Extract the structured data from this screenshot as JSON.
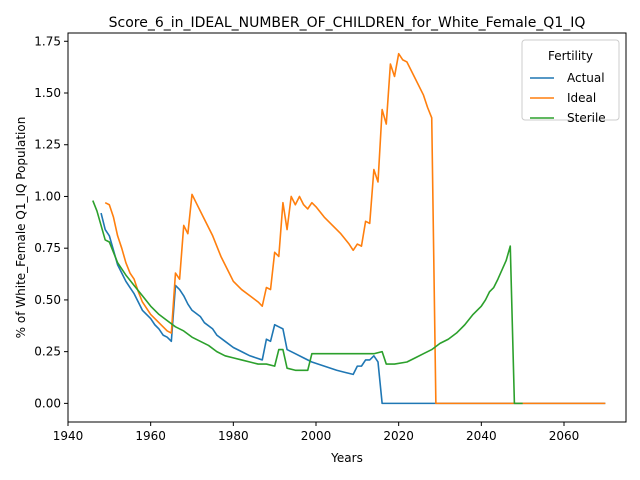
{
  "chart_data": {
    "type": "line",
    "title": "Score_6_in_IDEAL_NUMBER_OF_CHILDREN_for_White_Female_Q1_IQ",
    "xlabel": "Years",
    "ylabel": "% of White_Female Q1_IQ Population",
    "xlim": [
      1940,
      2075
    ],
    "ylim": [
      -0.09,
      1.79
    ],
    "x_ticks": [
      1940,
      1960,
      1980,
      2000,
      2020,
      2040,
      2060
    ],
    "y_ticks": [
      "0.00",
      "0.25",
      "0.50",
      "0.75",
      "1.00",
      "1.25",
      "1.50",
      "1.75"
    ],
    "grid": false,
    "legend": {
      "title": "Fertility",
      "position": "top-right"
    },
    "series": [
      {
        "name": "Actual",
        "color": "#1f77b4",
        "points": [
          [
            1948,
            0.92
          ],
          [
            1949,
            0.84
          ],
          [
            1950,
            0.81
          ],
          [
            1951,
            0.74
          ],
          [
            1952,
            0.67
          ],
          [
            1953,
            0.63
          ],
          [
            1954,
            0.59
          ],
          [
            1955,
            0.56
          ],
          [
            1956,
            0.53
          ],
          [
            1957,
            0.49
          ],
          [
            1958,
            0.45
          ],
          [
            1960,
            0.41
          ],
          [
            1961,
            0.38
          ],
          [
            1962,
            0.36
          ],
          [
            1963,
            0.33
          ],
          [
            1964,
            0.32
          ],
          [
            1965,
            0.3
          ],
          [
            1966,
            0.57
          ],
          [
            1967,
            0.55
          ],
          [
            1968,
            0.52
          ],
          [
            1969,
            0.48
          ],
          [
            1970,
            0.45
          ],
          [
            1972,
            0.42
          ],
          [
            1973,
            0.39
          ],
          [
            1975,
            0.36
          ],
          [
            1976,
            0.33
          ],
          [
            1978,
            0.3
          ],
          [
            1980,
            0.27
          ],
          [
            1982,
            0.25
          ],
          [
            1984,
            0.23
          ],
          [
            1987,
            0.21
          ],
          [
            1988,
            0.31
          ],
          [
            1989,
            0.3
          ],
          [
            1990,
            0.38
          ],
          [
            1991,
            0.37
          ],
          [
            1992,
            0.36
          ],
          [
            1993,
            0.26
          ],
          [
            1995,
            0.24
          ],
          [
            1997,
            0.22
          ],
          [
            1999,
            0.2
          ],
          [
            2002,
            0.18
          ],
          [
            2005,
            0.16
          ],
          [
            2007,
            0.15
          ],
          [
            2009,
            0.14
          ],
          [
            2010,
            0.18
          ],
          [
            2011,
            0.18
          ],
          [
            2012,
            0.21
          ],
          [
            2013,
            0.21
          ],
          [
            2014,
            0.23
          ],
          [
            2015,
            0.2
          ],
          [
            2016,
            0.0
          ],
          [
            2020,
            0.0
          ],
          [
            2030,
            0.0
          ],
          [
            2040,
            0.0
          ],
          [
            2050,
            0.0
          ],
          [
            2060,
            0.0
          ],
          [
            2070,
            0.0
          ]
        ]
      },
      {
        "name": "Ideal",
        "color": "#ff7f0e",
        "points": [
          [
            1949,
            0.97
          ],
          [
            1950,
            0.96
          ],
          [
            1951,
            0.9
          ],
          [
            1952,
            0.81
          ],
          [
            1953,
            0.75
          ],
          [
            1954,
            0.68
          ],
          [
            1955,
            0.63
          ],
          [
            1956,
            0.6
          ],
          [
            1957,
            0.54
          ],
          [
            1958,
            0.49
          ],
          [
            1960,
            0.43
          ],
          [
            1962,
            0.39
          ],
          [
            1963,
            0.37
          ],
          [
            1964,
            0.35
          ],
          [
            1965,
            0.34
          ],
          [
            1966,
            0.63
          ],
          [
            1967,
            0.6
          ],
          [
            1968,
            0.86
          ],
          [
            1969,
            0.82
          ],
          [
            1970,
            1.01
          ],
          [
            1971,
            0.97
          ],
          [
            1973,
            0.89
          ],
          [
            1975,
            0.81
          ],
          [
            1977,
            0.71
          ],
          [
            1979,
            0.63
          ],
          [
            1980,
            0.59
          ],
          [
            1982,
            0.55
          ],
          [
            1984,
            0.52
          ],
          [
            1986,
            0.49
          ],
          [
            1987,
            0.47
          ],
          [
            1988,
            0.56
          ],
          [
            1989,
            0.55
          ],
          [
            1990,
            0.73
          ],
          [
            1991,
            0.71
          ],
          [
            1992,
            0.97
          ],
          [
            1993,
            0.84
          ],
          [
            1994,
            1.0
          ],
          [
            1995,
            0.96
          ],
          [
            1996,
            1.0
          ],
          [
            1997,
            0.96
          ],
          [
            1998,
            0.94
          ],
          [
            1999,
            0.97
          ],
          [
            2000,
            0.95
          ],
          [
            2002,
            0.9
          ],
          [
            2004,
            0.86
          ],
          [
            2006,
            0.82
          ],
          [
            2008,
            0.77
          ],
          [
            2009,
            0.74
          ],
          [
            2010,
            0.77
          ],
          [
            2011,
            0.76
          ],
          [
            2012,
            0.88
          ],
          [
            2013,
            0.87
          ],
          [
            2014,
            1.13
          ],
          [
            2015,
            1.07
          ],
          [
            2016,
            1.42
          ],
          [
            2017,
            1.35
          ],
          [
            2018,
            1.64
          ],
          [
            2019,
            1.58
          ],
          [
            2020,
            1.69
          ],
          [
            2021,
            1.66
          ],
          [
            2022,
            1.65
          ],
          [
            2024,
            1.57
          ],
          [
            2026,
            1.49
          ],
          [
            2027,
            1.43
          ],
          [
            2028,
            1.38
          ],
          [
            2029,
            0.0
          ],
          [
            2040,
            0.0
          ],
          [
            2050,
            0.0
          ],
          [
            2060,
            0.0
          ],
          [
            2070,
            0.0
          ]
        ]
      },
      {
        "name": "Sterile",
        "color": "#2ca02c",
        "points": [
          [
            1946,
            0.98
          ],
          [
            1947,
            0.93
          ],
          [
            1948,
            0.86
          ],
          [
            1949,
            0.79
          ],
          [
            1950,
            0.78
          ],
          [
            1951,
            0.73
          ],
          [
            1952,
            0.68
          ],
          [
            1954,
            0.62
          ],
          [
            1956,
            0.57
          ],
          [
            1958,
            0.52
          ],
          [
            1960,
            0.47
          ],
          [
            1962,
            0.43
          ],
          [
            1964,
            0.4
          ],
          [
            1966,
            0.37
          ],
          [
            1968,
            0.35
          ],
          [
            1970,
            0.32
          ],
          [
            1972,
            0.3
          ],
          [
            1974,
            0.28
          ],
          [
            1976,
            0.25
          ],
          [
            1978,
            0.23
          ],
          [
            1980,
            0.22
          ],
          [
            1982,
            0.21
          ],
          [
            1984,
            0.2
          ],
          [
            1986,
            0.19
          ],
          [
            1988,
            0.19
          ],
          [
            1990,
            0.18
          ],
          [
            1991,
            0.26
          ],
          [
            1992,
            0.26
          ],
          [
            1993,
            0.17
          ],
          [
            1995,
            0.16
          ],
          [
            1998,
            0.16
          ],
          [
            1999,
            0.24
          ],
          [
            2002,
            0.24
          ],
          [
            2005,
            0.24
          ],
          [
            2008,
            0.24
          ],
          [
            2011,
            0.24
          ],
          [
            2014,
            0.24
          ],
          [
            2016,
            0.25
          ],
          [
            2017,
            0.19
          ],
          [
            2019,
            0.19
          ],
          [
            2022,
            0.2
          ],
          [
            2024,
            0.22
          ],
          [
            2026,
            0.24
          ],
          [
            2028,
            0.26
          ],
          [
            2030,
            0.29
          ],
          [
            2032,
            0.31
          ],
          [
            2034,
            0.34
          ],
          [
            2035,
            0.36
          ],
          [
            2036,
            0.38
          ],
          [
            2038,
            0.43
          ],
          [
            2040,
            0.47
          ],
          [
            2041,
            0.5
          ],
          [
            2042,
            0.54
          ],
          [
            2043,
            0.56
          ],
          [
            2044,
            0.6
          ],
          [
            2046,
            0.69
          ],
          [
            2047,
            0.76
          ],
          [
            2048,
            0.0
          ],
          [
            2050,
            0.0
          ]
        ]
      }
    ]
  }
}
